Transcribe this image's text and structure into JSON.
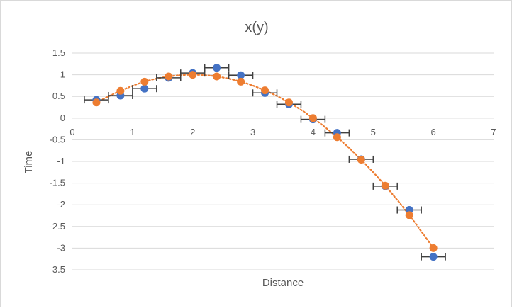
{
  "chart_data": {
    "type": "scatter",
    "title": "x(y)",
    "xlabel": "Distance",
    "ylabel": "Time",
    "xlim": [
      0,
      7
    ],
    "ylim": [
      -3.5,
      1.5
    ],
    "x_ticks": [
      "0",
      "1",
      "2",
      "3",
      "4",
      "5",
      "6",
      "7"
    ],
    "y_ticks": [
      "1.5",
      "1",
      "0.5",
      "0",
      "-0.5",
      "-1",
      "-1.5",
      "-2",
      "-2.5",
      "-3",
      "-3.5"
    ],
    "grid": "horizontal",
    "x_error": 0.2,
    "series": [
      {
        "color": "#4472c4",
        "error_bars": true,
        "points": [
          [
            0.4,
            0.42
          ],
          [
            0.8,
            0.52
          ],
          [
            1.2,
            0.68
          ],
          [
            1.6,
            0.93
          ],
          [
            2.0,
            1.04
          ],
          [
            2.4,
            1.16
          ],
          [
            2.8,
            0.99
          ],
          [
            3.2,
            0.58
          ],
          [
            3.6,
            0.32
          ],
          [
            4.0,
            -0.03
          ],
          [
            4.4,
            -0.34
          ],
          [
            4.8,
            -0.95
          ],
          [
            5.2,
            -1.57
          ],
          [
            5.6,
            -2.12
          ],
          [
            6.0,
            -3.2
          ]
        ]
      },
      {
        "color": "#ed7d31",
        "dotted_line": true,
        "points": [
          [
            0.4,
            0.36
          ],
          [
            0.8,
            0.63
          ],
          [
            1.2,
            0.84
          ],
          [
            1.6,
            0.96
          ],
          [
            2.0,
            1.0
          ],
          [
            2.4,
            0.96
          ],
          [
            2.8,
            0.84
          ],
          [
            3.2,
            0.64
          ],
          [
            3.6,
            0.36
          ],
          [
            4.0,
            0.0
          ],
          [
            4.4,
            -0.44
          ],
          [
            4.8,
            -0.96
          ],
          [
            5.2,
            -1.56
          ],
          [
            5.6,
            -2.24
          ],
          [
            6.0,
            -3.0
          ]
        ]
      }
    ]
  }
}
